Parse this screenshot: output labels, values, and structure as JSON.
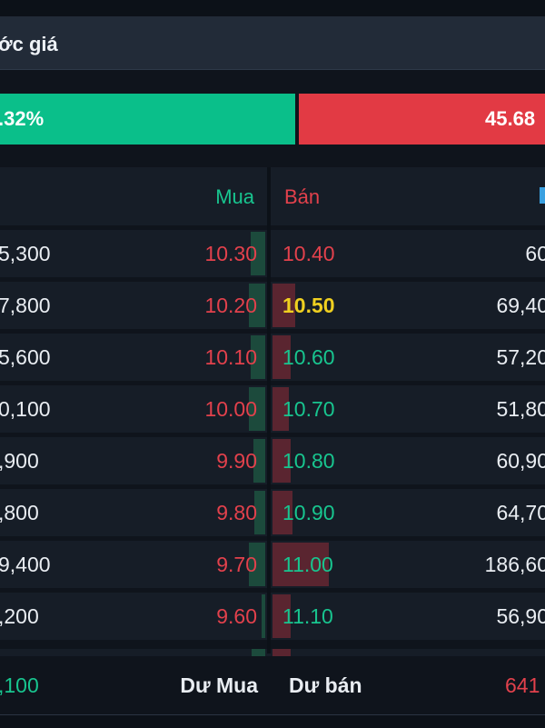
{
  "header": {
    "title": "ớc giá"
  },
  "ratio": {
    "buy_label": ".32%",
    "sell_label": "45.68"
  },
  "columns": {
    "buy": "Mua",
    "sell": "Bán"
  },
  "colors": {
    "up": "#18c58f",
    "down": "#e2414c",
    "ref": "#f0d020"
  },
  "rows": [
    {
      "vol_left": "5,300",
      "buy_price": "10.30",
      "sell_price": "10.40",
      "sell_color": "down",
      "vol_right": "60",
      "buy_fill": 0.3,
      "sell_fill": 0.0
    },
    {
      "vol_left": "7,800",
      "buy_price": "10.20",
      "sell_price": "10.50",
      "sell_color": "ref",
      "vol_right": "69,40",
      "buy_fill": 0.35,
      "sell_fill": 0.25
    },
    {
      "vol_left": "5,600",
      "buy_price": "10.10",
      "sell_price": "10.60",
      "sell_color": "up",
      "vol_right": "57,20",
      "buy_fill": 0.3,
      "sell_fill": 0.2
    },
    {
      "vol_left": "0,100",
      "buy_price": "10.00",
      "sell_price": "10.70",
      "sell_color": "up",
      "vol_right": "51,80",
      "buy_fill": 0.35,
      "sell_fill": 0.18
    },
    {
      "vol_left": ",900",
      "buy_price": "9.90",
      "sell_price": "10.80",
      "sell_color": "up",
      "vol_right": "60,90",
      "buy_fill": 0.25,
      "sell_fill": 0.2
    },
    {
      "vol_left": ",800",
      "buy_price": "9.80",
      "sell_price": "10.90",
      "sell_color": "up",
      "vol_right": "64,70",
      "buy_fill": 0.22,
      "sell_fill": 0.22
    },
    {
      "vol_left": "9,400",
      "buy_price": "9.70",
      "sell_price": "11.00",
      "sell_color": "up",
      "vol_right": "186,60",
      "buy_fill": 0.35,
      "sell_fill": 0.62
    },
    {
      "vol_left": ",200",
      "buy_price": "9.60",
      "sell_price": "11.10",
      "sell_color": "up",
      "vol_right": "56,90",
      "buy_fill": 0.04,
      "sell_fill": 0.2
    }
  ],
  "footer": {
    "left_value": ",100",
    "buy_surplus": "Dư Mua",
    "sell_surplus": "Dư bán",
    "right_value": "641"
  }
}
